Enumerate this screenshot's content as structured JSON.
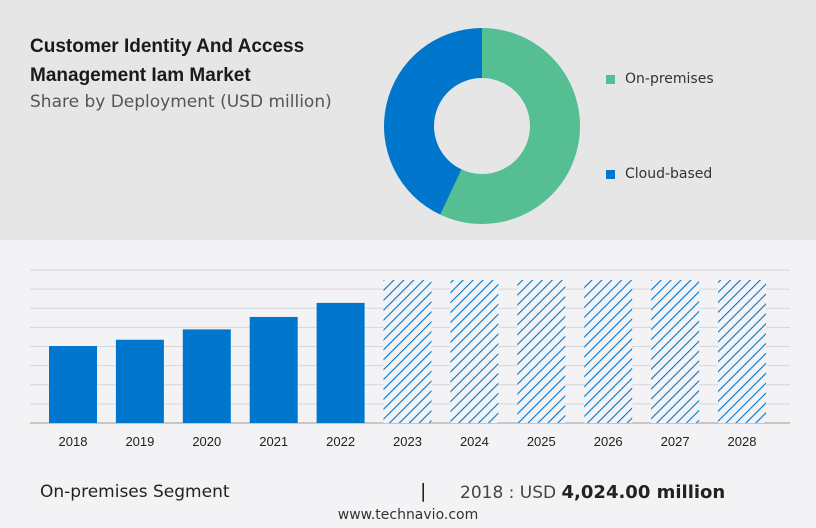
{
  "title": "Customer Identity And Access Management Iam Market",
  "subtitle": "Share by Deployment (USD million)",
  "colors": {
    "on_premises": "#55bf93",
    "cloud_based": "#0077cc",
    "bar": "#0077cc"
  },
  "chart_data": [
    {
      "type": "pie",
      "style": "donut",
      "slices": [
        {
          "name": "On-premises",
          "value": 57
        },
        {
          "name": "Cloud-based",
          "value": 43
        }
      ],
      "legend_placement": "right"
    },
    {
      "type": "bar",
      "categories": [
        "2018",
        "2019",
        "2020",
        "2021",
        "2022",
        "2023",
        "2024",
        "2025",
        "2026",
        "2027",
        "2028"
      ],
      "values": [
        4024,
        4354,
        4895,
        5545,
        6280,
        null,
        null,
        null,
        null,
        null,
        null
      ],
      "forecast_categories": [
        "2023",
        "2024",
        "2025",
        "2026",
        "2027",
        "2028"
      ],
      "forecast_style": "hatched",
      "ylim": [
        0,
        8000
      ],
      "grid": true
    }
  ],
  "footer": {
    "segment": "On-premises Segment",
    "separator": "|",
    "year_label": "2018 : USD",
    "value": "4,024.00 million",
    "site": "www.technavio.com"
  }
}
